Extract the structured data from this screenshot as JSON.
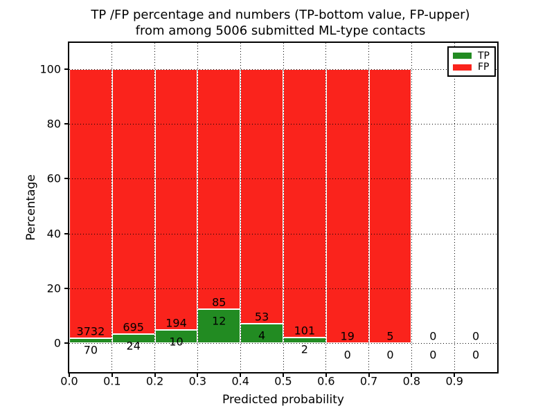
{
  "title": {
    "line1": "TP /FP percentage and numbers (TP-bottom value, FP-upper)",
    "line2": "from among 5006 submitted ML-type contacts"
  },
  "axes": {
    "xlabel": "Predicted probability",
    "ylabel": "Percentage",
    "xtick_labels": [
      "0.0",
      "0.1",
      "0.2",
      "0.3",
      "0.4",
      "0.5",
      "0.6",
      "0.7",
      "0.8",
      "0.9"
    ],
    "ytick_values": [
      0,
      20,
      40,
      60,
      80,
      100
    ]
  },
  "legend": {
    "items": [
      {
        "label": "TP",
        "color": "#228b22"
      },
      {
        "label": "FP",
        "color": "#fa231c"
      }
    ]
  },
  "chart_data": {
    "type": "bar",
    "stacked": true,
    "normalized_to_percent": true,
    "title": "TP /FP percentage and numbers (TP-bottom value, FP-upper) from among 5006 submitted ML-type contacts",
    "xlabel": "Predicted probability",
    "ylabel": "Percentage",
    "bin_edges": [
      0.0,
      0.1,
      0.2,
      0.3,
      0.4,
      0.5,
      0.6,
      0.7,
      0.8,
      0.9,
      1.0
    ],
    "categories": [
      "0.0-0.1",
      "0.1-0.2",
      "0.2-0.3",
      "0.3-0.4",
      "0.4-0.5",
      "0.5-0.6",
      "0.6-0.7",
      "0.7-0.8",
      "0.8-0.9",
      "0.9-1.0"
    ],
    "series": [
      {
        "name": "TP",
        "color": "#228b22",
        "counts": [
          70,
          24,
          10,
          12,
          4,
          2,
          0,
          0,
          0,
          0
        ]
      },
      {
        "name": "FP",
        "color": "#fa231c",
        "counts": [
          3732,
          695,
          194,
          85,
          53,
          101,
          19,
          5,
          0,
          0
        ]
      }
    ],
    "tp_percent_per_bin": [
      1.84,
      3.34,
      4.9,
      12.37,
      7.02,
      1.94,
      0.0,
      0.0,
      null,
      null
    ],
    "total_contacts": 5006,
    "ylim": [
      -11,
      110
    ],
    "xlim": [
      0.0,
      1.0
    ],
    "grid": true,
    "grid_style": "dotted",
    "legend_position": "upper right"
  }
}
